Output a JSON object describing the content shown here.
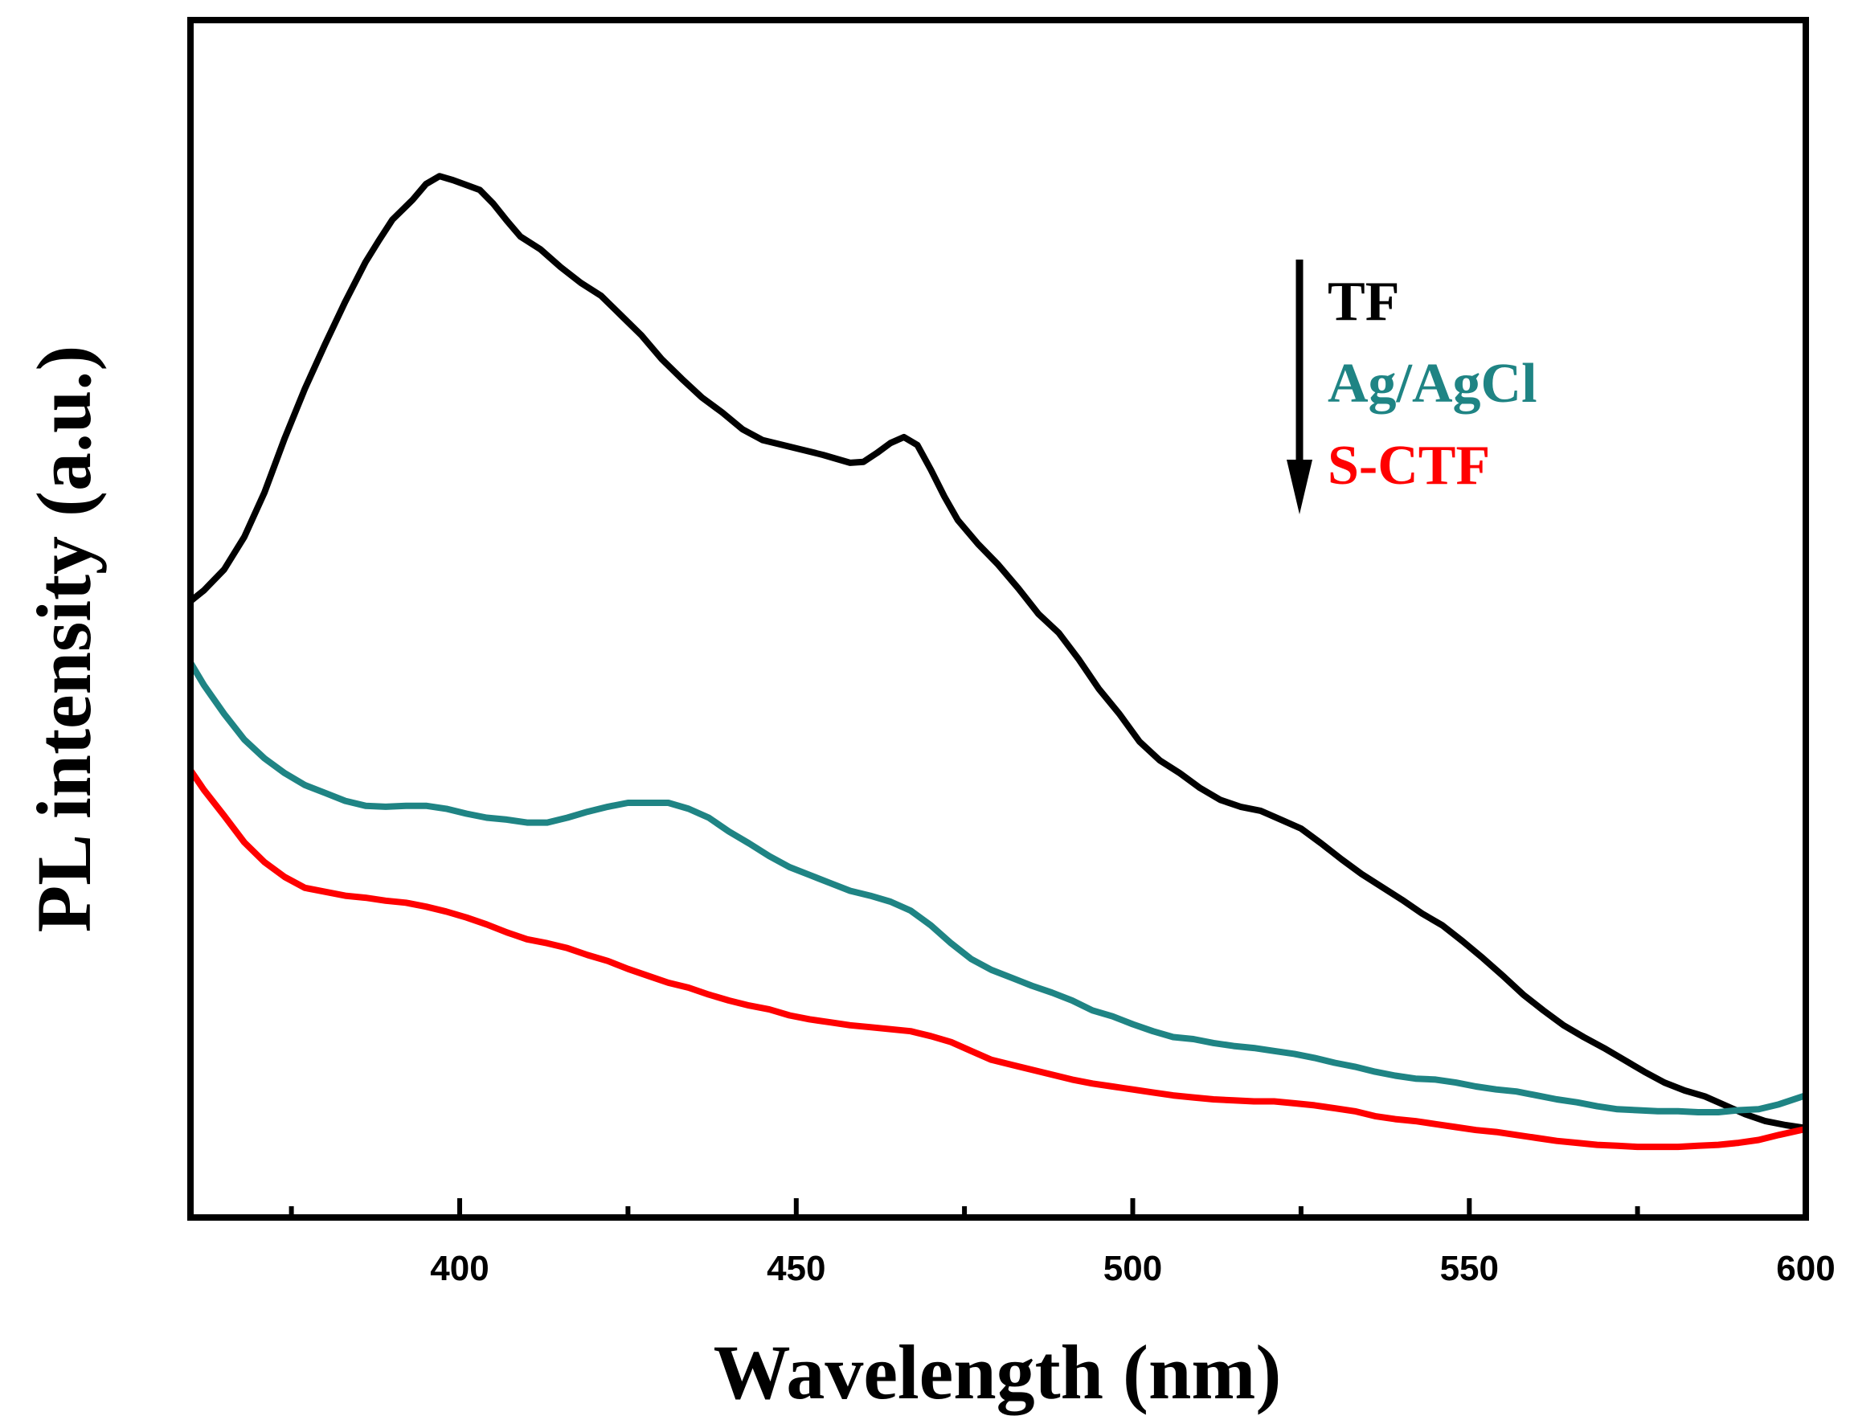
{
  "chart_data": {
    "type": "line",
    "title": "",
    "xlabel": "Wavelength (nm)",
    "ylabel": "PL intensity (a.u.)",
    "xlim": [
      360,
      600
    ],
    "ylim": [
      0,
      100
    ],
    "x_ticks": [
      400,
      450,
      500,
      550,
      600
    ],
    "x_tick_labels": [
      "400",
      "450",
      "500",
      "550",
      "600"
    ],
    "x_minor_ticks": [
      375,
      425,
      475,
      525,
      575
    ],
    "y_ticks_shown": false,
    "grid": false,
    "legend_position": "top-right",
    "annotation": "downward arrow next to legend indicating decreasing PL intensity",
    "series": [
      {
        "name": "TF",
        "color": "#000000",
        "x": [
          360,
          362,
          365,
          368,
          371,
          374,
          377,
          380,
          383,
          386,
          388,
          390,
          393,
          395,
          397,
          399,
          401,
          403,
          405,
          407,
          409,
          412,
          415,
          418,
          421,
          424,
          427,
          430,
          433,
          436,
          439,
          442,
          445,
          448,
          451,
          454,
          456,
          458,
          460,
          462,
          464,
          466,
          468,
          470,
          472,
          474,
          477,
          480,
          483,
          486,
          489,
          492,
          495,
          498,
          501,
          504,
          507,
          510,
          513,
          516,
          519,
          522,
          525,
          528,
          531,
          534,
          537,
          540,
          543,
          546,
          549,
          552,
          555,
          558,
          561,
          564,
          567,
          570,
          573,
          576,
          579,
          582,
          585,
          588,
          591,
          594,
          597,
          600
        ],
        "values": [
          53.0,
          54.1,
          56.2,
          59.5,
          64.0,
          69.5,
          74.5,
          79.0,
          83.3,
          87.3,
          89.5,
          91.6,
          93.6,
          95.2,
          96.0,
          95.6,
          95.1,
          94.6,
          93.2,
          91.5,
          89.9,
          88.6,
          86.8,
          85.2,
          83.9,
          81.9,
          79.9,
          77.5,
          75.5,
          73.6,
          72.1,
          70.4,
          69.3,
          68.8,
          68.3,
          67.8,
          67.4,
          67.0,
          67.1,
          68.0,
          69.0,
          69.6,
          68.8,
          66.3,
          63.6,
          61.2,
          58.8,
          56.7,
          54.3,
          51.7,
          49.8,
          47.1,
          44.1,
          41.6,
          38.8,
          36.9,
          35.6,
          34.1,
          32.9,
          32.2,
          31.8,
          30.9,
          30.0,
          28.5,
          26.9,
          25.4,
          24.1,
          22.8,
          21.4,
          20.2,
          18.6,
          16.9,
          15.1,
          13.2,
          11.6,
          10.1,
          8.9,
          7.8,
          6.6,
          5.4,
          4.3,
          3.5,
          2.9,
          2.0,
          1.1,
          0.4,
          0.0,
          -0.3
        ]
      },
      {
        "name": "Ag/AgCl",
        "color": "#1f8484",
        "x": [
          360,
          362,
          365,
          368,
          371,
          374,
          377,
          380,
          383,
          386,
          389,
          392,
          395,
          398,
          401,
          404,
          407,
          410,
          413,
          416,
          419,
          422,
          425,
          428,
          431,
          434,
          437,
          440,
          443,
          446,
          449,
          452,
          455,
          458,
          461,
          464,
          467,
          470,
          473,
          476,
          479,
          482,
          485,
          488,
          491,
          494,
          497,
          500,
          503,
          506,
          509,
          512,
          515,
          518,
          521,
          524,
          527,
          530,
          533,
          536,
          539,
          542,
          545,
          548,
          551,
          554,
          557,
          560,
          563,
          566,
          569,
          572,
          575,
          578,
          581,
          584,
          587,
          590,
          593,
          596,
          600
        ],
        "values": [
          46.8,
          44.5,
          41.6,
          39.0,
          37.1,
          35.6,
          34.4,
          33.6,
          32.8,
          32.3,
          32.2,
          32.3,
          32.3,
          32.0,
          31.5,
          31.1,
          30.9,
          30.6,
          30.6,
          31.1,
          31.7,
          32.2,
          32.6,
          32.6,
          32.6,
          32.0,
          31.1,
          29.7,
          28.5,
          27.2,
          26.1,
          25.3,
          24.5,
          23.7,
          23.2,
          22.6,
          21.7,
          20.2,
          18.4,
          16.8,
          15.7,
          14.9,
          14.1,
          13.4,
          12.6,
          11.6,
          11.0,
          10.2,
          9.5,
          8.9,
          8.7,
          8.3,
          8.0,
          7.8,
          7.5,
          7.2,
          6.8,
          6.3,
          5.9,
          5.4,
          5.0,
          4.7,
          4.6,
          4.3,
          3.9,
          3.6,
          3.4,
          3.0,
          2.6,
          2.3,
          1.9,
          1.6,
          1.5,
          1.4,
          1.4,
          1.3,
          1.3,
          1.5,
          1.6,
          2.1,
          3.0
        ]
      },
      {
        "name": "S-CTF",
        "color": "#ff0000",
        "x": [
          360,
          362,
          365,
          368,
          371,
          374,
          377,
          380,
          383,
          386,
          389,
          392,
          395,
          398,
          401,
          404,
          407,
          410,
          413,
          416,
          419,
          422,
          425,
          428,
          431,
          434,
          437,
          440,
          443,
          446,
          449,
          452,
          455,
          458,
          461,
          464,
          467,
          470,
          473,
          476,
          479,
          482,
          485,
          488,
          491,
          494,
          497,
          500,
          503,
          506,
          509,
          512,
          515,
          518,
          521,
          524,
          527,
          530,
          533,
          536,
          539,
          542,
          545,
          548,
          551,
          554,
          557,
          560,
          563,
          566,
          569,
          572,
          575,
          578,
          581,
          584,
          587,
          590,
          593,
          596,
          600
        ],
        "values": [
          35.9,
          33.9,
          31.3,
          28.6,
          26.6,
          25.1,
          24.0,
          23.6,
          23.2,
          23.0,
          22.7,
          22.5,
          22.1,
          21.6,
          21.0,
          20.3,
          19.5,
          18.8,
          18.4,
          17.9,
          17.2,
          16.6,
          15.8,
          15.1,
          14.4,
          13.9,
          13.2,
          12.6,
          12.1,
          11.7,
          11.1,
          10.7,
          10.4,
          10.1,
          9.9,
          9.7,
          9.5,
          9.0,
          8.4,
          7.5,
          6.6,
          6.1,
          5.6,
          5.1,
          4.6,
          4.2,
          3.9,
          3.6,
          3.3,
          3.0,
          2.8,
          2.6,
          2.5,
          2.4,
          2.4,
          2.2,
          2.0,
          1.7,
          1.4,
          0.9,
          0.6,
          0.4,
          0.1,
          -0.2,
          -0.5,
          -0.7,
          -1.0,
          -1.3,
          -1.6,
          -1.8,
          -2.0,
          -2.1,
          -2.2,
          -2.2,
          -2.2,
          -2.1,
          -2.0,
          -1.8,
          -1.5,
          -1.0,
          -0.4
        ]
      }
    ]
  },
  "legend": {
    "items": [
      {
        "label": "TF",
        "color": "#000000"
      },
      {
        "label": "Ag/AgCl",
        "color": "#1f8484"
      },
      {
        "label": "S-CTF",
        "color": "#ff0000"
      }
    ]
  }
}
